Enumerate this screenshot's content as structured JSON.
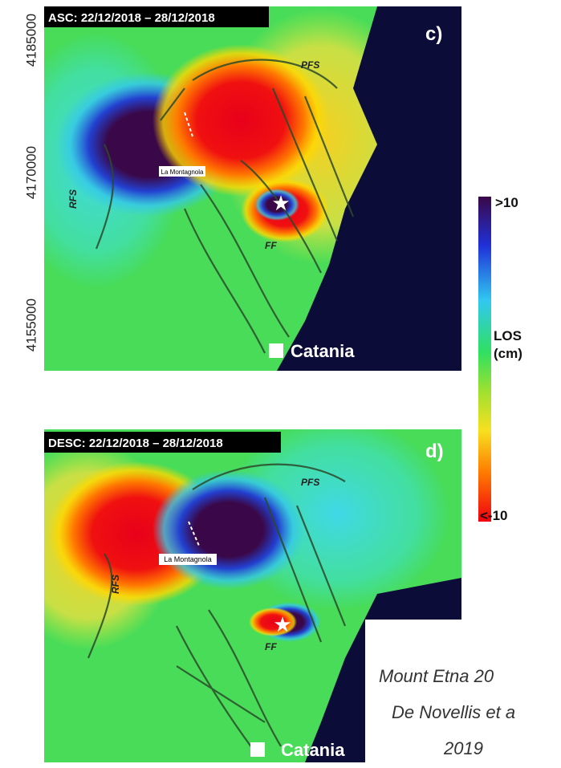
{
  "y_axis_ticks": [
    "4185000",
    "4170000",
    "4155000"
  ],
  "panels": [
    {
      "title": "ASC: 22/12/2018 – 28/12/2018",
      "label": "c)",
      "faults": [
        "PFS",
        "RFS",
        "FF"
      ],
      "place": "La Montagnola",
      "city": "Catania"
    },
    {
      "title": "DESC: 22/12/2018 – 28/12/2018",
      "label": "d)",
      "faults": [
        "PFS",
        "RFS",
        "FF"
      ],
      "place": "La Montagnola",
      "city": "Catania"
    }
  ],
  "colorbar": {
    "top": ">10",
    "unit_line1": "LOS",
    "unit_line2": "(cm)",
    "bottom": "<-10"
  },
  "caption": [
    "Mount Etna 20",
    "De Novellis et a",
    "2019"
  ]
}
